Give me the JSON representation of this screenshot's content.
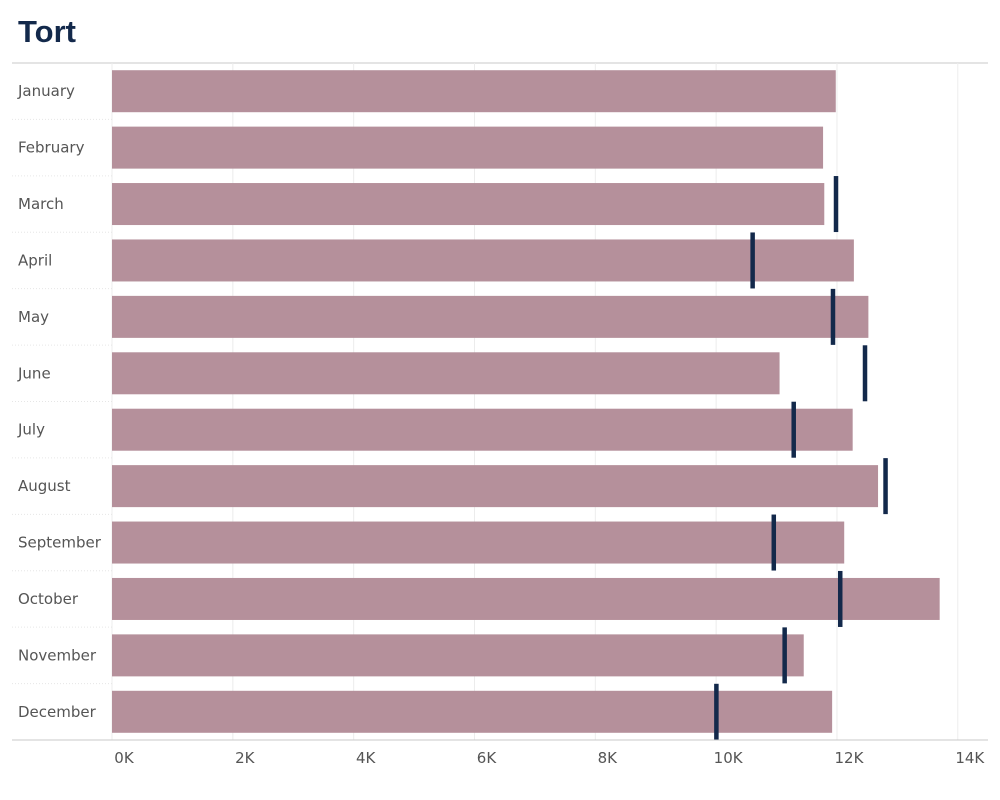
{
  "colors": {
    "bar": "#b5909b",
    "target": "#13294b",
    "title": "#13294b",
    "text": "#555555",
    "axis": "#c8c8c8",
    "grid": "#ececec"
  },
  "chart_data": {
    "type": "bar",
    "orientation": "horizontal",
    "title": "Tort",
    "xlabel": "",
    "ylabel": "",
    "xlim": [
      0,
      14500
    ],
    "ticks": [
      {
        "value": 0,
        "label": "0K"
      },
      {
        "value": 2000,
        "label": "2K"
      },
      {
        "value": 4000,
        "label": "4K"
      },
      {
        "value": 6000,
        "label": "6K"
      },
      {
        "value": 8000,
        "label": "8K"
      },
      {
        "value": 10000,
        "label": "10K"
      },
      {
        "value": 12000,
        "label": "12K"
      },
      {
        "value": 14000,
        "label": "14K"
      }
    ],
    "grid": true,
    "legend": "none",
    "categories": [
      "January",
      "February",
      "March",
      "April",
      "May",
      "June",
      "July",
      "August",
      "September",
      "October",
      "November",
      "December"
    ],
    "values": [
      11980,
      11770,
      11790,
      12280,
      12520,
      11050,
      12260,
      12680,
      12120,
      13700,
      11450,
      11920
    ],
    "reference_values": [
      null,
      null,
      11980,
      10600,
      11930,
      12460,
      11280,
      12800,
      10950,
      12050,
      11130,
      10000
    ]
  }
}
